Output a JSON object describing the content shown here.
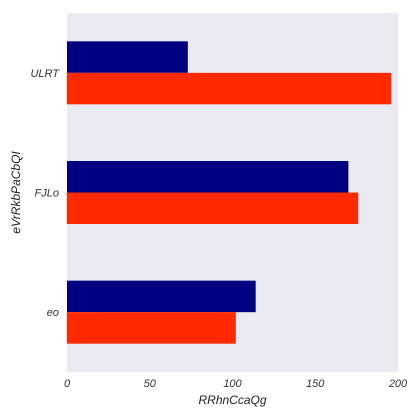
{
  "chart_data": {
    "type": "bar",
    "orientation": "horizontal",
    "xlabel": "RRhnCcaQg",
    "ylabel": "eVrRkbPaCbQI",
    "xlim": [
      0,
      200
    ],
    "x_ticks": [
      "0",
      "50",
      "100",
      "150",
      "200"
    ],
    "categories": [
      "ULRT",
      "FJLo",
      "eo"
    ],
    "series": [
      {
        "color": "#000080",
        "values": [
          73,
          170,
          114
        ]
      },
      {
        "color": "#ff2a00",
        "values": [
          196,
          176,
          102
        ]
      }
    ],
    "grid": false,
    "background": "#eaeaf2"
  }
}
